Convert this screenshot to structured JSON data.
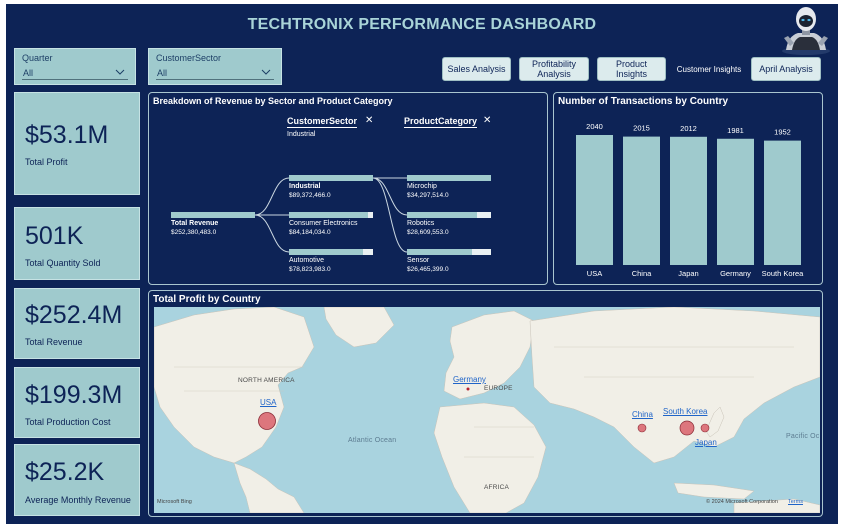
{
  "header": {
    "title": "TECHTRONIX PERFORMANCE DASHBOARD"
  },
  "slicers": [
    {
      "label": "Quarter",
      "value": "All"
    },
    {
      "label": "CustomerSector",
      "value": "All"
    }
  ],
  "nav": {
    "sales": "Sales Analysis",
    "profit_line1": "Profitability",
    "profit_line2": "Analysis",
    "product": "Product Insights",
    "customer": "Customer Insights",
    "april": "April Analysis"
  },
  "kpis": [
    {
      "value": "$53.1M",
      "label": "Total Profit"
    },
    {
      "value": "501K",
      "label": "Total Quantity Sold"
    },
    {
      "value": "$252.4M",
      "label": "Total Revenue"
    },
    {
      "value": "$199.3M",
      "label": "Total Production Cost"
    },
    {
      "value": "$25.2K",
      "label": "Average Monthly Revenue"
    }
  ],
  "tree": {
    "title": "Breakdown of Revenue by Sector and Product Category",
    "level1_header": "CustomerSector",
    "level1_selected": "Industrial",
    "level2_header": "ProductCategory",
    "close_glyph": "✕",
    "root": {
      "label": "Total Revenue",
      "value": "$252,380,483.0"
    },
    "sectors": [
      {
        "label": "Industrial",
        "value": "$89,372,466.0",
        "fraction": 1.0
      },
      {
        "label": "Consumer Electronics",
        "value": "$84,184,034.0",
        "fraction": 0.94
      },
      {
        "label": "Automotive",
        "value": "$78,823,983.0",
        "fraction": 0.88
      }
    ],
    "categories": [
      {
        "label": "Microchip",
        "value": "$34,297,514.0",
        "fraction": 1.0
      },
      {
        "label": "Robotics",
        "value": "$28,609,553.0",
        "fraction": 0.83
      },
      {
        "label": "Sensor",
        "value": "$26,465,399.0",
        "fraction": 0.77
      }
    ]
  },
  "transactions_chart": {
    "title": "Number of Transactions by Country"
  },
  "chart_data": {
    "type": "bar",
    "title": "Number of Transactions by Country",
    "categories": [
      "USA",
      "China",
      "Japan",
      "Germany",
      "South Korea"
    ],
    "values": [
      2040,
      2015,
      2012,
      1981,
      1952
    ],
    "data_labels": [
      "2040",
      "2015",
      "2012",
      "1981",
      "1952"
    ],
    "xlabel": "",
    "ylabel": "",
    "ylim": [
      0,
      2040
    ],
    "grid": false,
    "legend": "none",
    "bar_color": "#9fcacd"
  },
  "map": {
    "title": "Total Profit by Country",
    "continents": {
      "north_america": "NORTH AMERICA",
      "europe": "EUROPE",
      "africa": "AFRICA"
    },
    "oceans": {
      "atlantic": "Atlantic Ocean",
      "pacific": "Pacific Oc"
    },
    "countries": [
      "USA",
      "Germany",
      "China",
      "South Korea",
      "Japan"
    ],
    "logo": "Microsoft Bing",
    "copyright": "© 2024 Microsoft Corporation",
    "terms": "Terms",
    "bubble_color": "#d9606a"
  },
  "colors": {
    "background": "#0d2356",
    "card": "#9fcacd",
    "title": "#a9d4d8"
  },
  "icons": {
    "robot": "robot-avatar-icon",
    "chevron": "chevron-down-icon",
    "close": "close-icon"
  }
}
